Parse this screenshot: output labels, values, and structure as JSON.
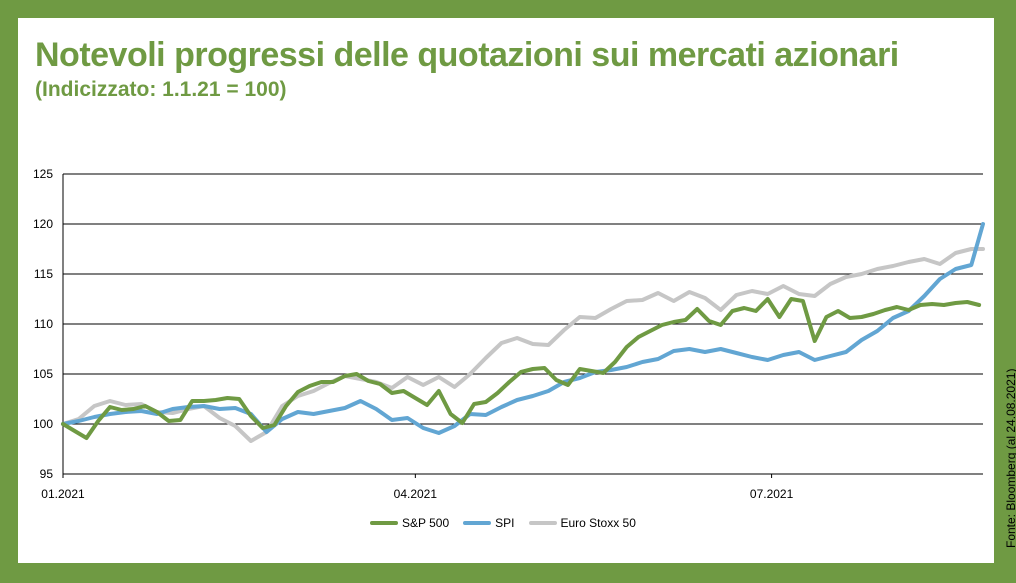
{
  "title": "Notevoli progressi delle quotazioni sui mercati azionari",
  "subtitle": "(Indicizzato: 1.1.21 = 100)",
  "source": "Fonte: Bloomberg (al 24.08.2021)",
  "colors": {
    "frame": "#6f9a43",
    "title": "#6f9a43",
    "sp500": "#6f9a43",
    "spi": "#62a6d3",
    "eurostoxx": "#c6c6c6"
  },
  "chart_data": {
    "type": "line",
    "title": "Notevoli progressi delle quotazioni sui mercati azionari",
    "subtitle": "(Indicizzato: 1.1.21 = 100)",
    "xlabel": "",
    "ylabel": "",
    "ylim": [
      95,
      125
    ],
    "yticks": [
      "95",
      "100",
      "105",
      "110",
      "115",
      "120",
      "125"
    ],
    "xticks": [
      {
        "label": "01.2021",
        "date": "2021-01-01"
      },
      {
        "label": "04.2021",
        "date": "2021-04-01"
      },
      {
        "label": "07.2021",
        "date": "2021-07-01"
      }
    ],
    "xlim": [
      "2021-01-01",
      "2021-08-24"
    ],
    "grid": "horizontal",
    "legend": "bottom",
    "series": [
      {
        "name": "S&P 500",
        "color": "#6f9a43",
        "points": [
          [
            "2021-01-01",
            100
          ],
          [
            "2021-01-04",
            99.3
          ],
          [
            "2021-01-07",
            98.6
          ],
          [
            "2021-01-10",
            100.3
          ],
          [
            "2021-01-13",
            101.7
          ],
          [
            "2021-01-16",
            101.4
          ],
          [
            "2021-01-19",
            101.5
          ],
          [
            "2021-01-22",
            101.8
          ],
          [
            "2021-01-25",
            101.2
          ],
          [
            "2021-01-28",
            100.3
          ],
          [
            "2021-01-31",
            100.4
          ],
          [
            "2021-02-03",
            102.3
          ],
          [
            "2021-02-06",
            102.3
          ],
          [
            "2021-02-09",
            102.4
          ],
          [
            "2021-02-12",
            102.6
          ],
          [
            "2021-02-15",
            102.5
          ],
          [
            "2021-02-18",
            100.8
          ],
          [
            "2021-02-21",
            99.6
          ],
          [
            "2021-02-24",
            99.9
          ],
          [
            "2021-02-27",
            101.8
          ],
          [
            "2021-03-02",
            103.2
          ],
          [
            "2021-03-05",
            103.8
          ],
          [
            "2021-03-08",
            104.2
          ],
          [
            "2021-03-11",
            104.2
          ],
          [
            "2021-03-14",
            104.8
          ],
          [
            "2021-03-17",
            105.0
          ],
          [
            "2021-03-20",
            104.3
          ],
          [
            "2021-03-23",
            104.0
          ],
          [
            "2021-03-26",
            103.1
          ],
          [
            "2021-03-29",
            103.3
          ],
          [
            "2021-04-01",
            102.6
          ],
          [
            "2021-04-04",
            101.9
          ],
          [
            "2021-04-07",
            103.3
          ],
          [
            "2021-04-10",
            101.0
          ],
          [
            "2021-04-13",
            100.1
          ],
          [
            "2021-04-16",
            102.0
          ],
          [
            "2021-04-19",
            102.2
          ],
          [
            "2021-04-22",
            103.1
          ],
          [
            "2021-04-25",
            104.2
          ],
          [
            "2021-04-28",
            105.2
          ],
          [
            "2021-05-01",
            105.5
          ],
          [
            "2021-05-04",
            105.6
          ],
          [
            "2021-05-07",
            104.4
          ],
          [
            "2021-05-10",
            103.9
          ],
          [
            "2021-05-13",
            105.5
          ],
          [
            "2021-05-16",
            105.3
          ],
          [
            "2021-05-19",
            105.1
          ],
          [
            "2021-05-22",
            106.2
          ],
          [
            "2021-05-25",
            107.7
          ],
          [
            "2021-05-28",
            108.7
          ],
          [
            "2021-05-31",
            109.3
          ],
          [
            "2021-06-03",
            109.9
          ],
          [
            "2021-06-06",
            110.2
          ],
          [
            "2021-06-09",
            110.4
          ],
          [
            "2021-06-12",
            111.5
          ],
          [
            "2021-06-15",
            110.3
          ],
          [
            "2021-06-18",
            109.9
          ],
          [
            "2021-06-21",
            111.3
          ],
          [
            "2021-06-24",
            111.6
          ],
          [
            "2021-06-27",
            111.3
          ],
          [
            "2021-06-30",
            112.5
          ],
          [
            "2021-07-03",
            110.7
          ],
          [
            "2021-07-06",
            112.5
          ],
          [
            "2021-07-09",
            112.3
          ],
          [
            "2021-07-12",
            108.3
          ],
          [
            "2021-07-15",
            110.7
          ],
          [
            "2021-07-18",
            111.3
          ],
          [
            "2021-07-21",
            110.6
          ],
          [
            "2021-07-24",
            110.7
          ],
          [
            "2021-07-27",
            111.0
          ],
          [
            "2021-07-30",
            111.4
          ],
          [
            "2021-08-02",
            111.7
          ],
          [
            "2021-08-05",
            111.4
          ],
          [
            "2021-08-08",
            111.9
          ],
          [
            "2021-08-11",
            112.0
          ],
          [
            "2021-08-14",
            111.9
          ],
          [
            "2021-08-17",
            112.1
          ],
          [
            "2021-08-20",
            112.2
          ],
          [
            "2021-08-23",
            111.9
          ]
        ]
      },
      {
        "name": "SPI",
        "color": "#62a6d3",
        "points": [
          [
            "2021-01-01",
            100
          ],
          [
            "2021-01-05",
            100.3
          ],
          [
            "2021-01-09",
            100.7
          ],
          [
            "2021-01-13",
            101.0
          ],
          [
            "2021-01-17",
            101.2
          ],
          [
            "2021-01-21",
            101.3
          ],
          [
            "2021-01-25",
            101.0
          ],
          [
            "2021-01-29",
            101.5
          ],
          [
            "2021-02-02",
            101.7
          ],
          [
            "2021-02-06",
            101.8
          ],
          [
            "2021-02-10",
            101.5
          ],
          [
            "2021-02-14",
            101.6
          ],
          [
            "2021-02-18",
            101.0
          ],
          [
            "2021-02-22",
            99.2
          ],
          [
            "2021-02-26",
            100.5
          ],
          [
            "2021-03-02",
            101.2
          ],
          [
            "2021-03-06",
            101.0
          ],
          [
            "2021-03-10",
            101.3
          ],
          [
            "2021-03-14",
            101.6
          ],
          [
            "2021-03-18",
            102.3
          ],
          [
            "2021-03-22",
            101.5
          ],
          [
            "2021-03-26",
            100.4
          ],
          [
            "2021-03-30",
            100.6
          ],
          [
            "2021-04-03",
            99.6
          ],
          [
            "2021-04-07",
            99.1
          ],
          [
            "2021-04-11",
            99.8
          ],
          [
            "2021-04-15",
            101.0
          ],
          [
            "2021-04-19",
            100.9
          ],
          [
            "2021-04-23",
            101.7
          ],
          [
            "2021-04-27",
            102.4
          ],
          [
            "2021-05-01",
            102.8
          ],
          [
            "2021-05-05",
            103.3
          ],
          [
            "2021-05-09",
            104.2
          ],
          [
            "2021-05-13",
            104.6
          ],
          [
            "2021-05-17",
            105.2
          ],
          [
            "2021-05-21",
            105.4
          ],
          [
            "2021-05-25",
            105.7
          ],
          [
            "2021-05-29",
            106.2
          ],
          [
            "2021-06-02",
            106.5
          ],
          [
            "2021-06-06",
            107.3
          ],
          [
            "2021-06-10",
            107.5
          ],
          [
            "2021-06-14",
            107.2
          ],
          [
            "2021-06-18",
            107.5
          ],
          [
            "2021-06-22",
            107.1
          ],
          [
            "2021-06-26",
            106.7
          ],
          [
            "2021-06-30",
            106.4
          ],
          [
            "2021-07-04",
            106.9
          ],
          [
            "2021-07-08",
            107.2
          ],
          [
            "2021-07-12",
            106.4
          ],
          [
            "2021-07-16",
            106.8
          ],
          [
            "2021-07-20",
            107.2
          ],
          [
            "2021-07-24",
            108.4
          ],
          [
            "2021-07-28",
            109.3
          ],
          [
            "2021-08-01",
            110.6
          ],
          [
            "2021-08-05",
            111.3
          ],
          [
            "2021-08-09",
            112.8
          ],
          [
            "2021-08-13",
            114.5
          ],
          [
            "2021-08-17",
            115.5
          ],
          [
            "2021-08-21",
            115.9
          ],
          [
            "2021-08-24",
            120.0
          ]
        ]
      },
      {
        "name": "Euro Stoxx 50",
        "color": "#c6c6c6",
        "points": [
          [
            "2021-01-01",
            100
          ],
          [
            "2021-01-05",
            100.5
          ],
          [
            "2021-01-09",
            101.8
          ],
          [
            "2021-01-13",
            102.3
          ],
          [
            "2021-01-17",
            101.9
          ],
          [
            "2021-01-21",
            102.0
          ],
          [
            "2021-01-25",
            101.2
          ],
          [
            "2021-01-29",
            101.1
          ],
          [
            "2021-02-02",
            101.5
          ],
          [
            "2021-02-06",
            101.8
          ],
          [
            "2021-02-10",
            100.6
          ],
          [
            "2021-02-14",
            99.8
          ],
          [
            "2021-02-18",
            98.3
          ],
          [
            "2021-02-22",
            99.2
          ],
          [
            "2021-02-26",
            101.8
          ],
          [
            "2021-03-02",
            102.8
          ],
          [
            "2021-03-06",
            103.3
          ],
          [
            "2021-03-10",
            104.1
          ],
          [
            "2021-03-14",
            104.8
          ],
          [
            "2021-03-18",
            104.5
          ],
          [
            "2021-03-22",
            104.2
          ],
          [
            "2021-03-26",
            103.6
          ],
          [
            "2021-03-30",
            104.7
          ],
          [
            "2021-04-03",
            103.9
          ],
          [
            "2021-04-07",
            104.7
          ],
          [
            "2021-04-11",
            103.7
          ],
          [
            "2021-04-15",
            105.0
          ],
          [
            "2021-04-19",
            106.6
          ],
          [
            "2021-04-23",
            108.1
          ],
          [
            "2021-04-27",
            108.6
          ],
          [
            "2021-05-01",
            108.0
          ],
          [
            "2021-05-05",
            107.9
          ],
          [
            "2021-05-09",
            109.4
          ],
          [
            "2021-05-13",
            110.7
          ],
          [
            "2021-05-17",
            110.6
          ],
          [
            "2021-05-21",
            111.5
          ],
          [
            "2021-05-25",
            112.3
          ],
          [
            "2021-05-29",
            112.4
          ],
          [
            "2021-06-02",
            113.1
          ],
          [
            "2021-06-06",
            112.3
          ],
          [
            "2021-06-10",
            113.2
          ],
          [
            "2021-06-14",
            112.6
          ],
          [
            "2021-06-18",
            111.4
          ],
          [
            "2021-06-22",
            112.9
          ],
          [
            "2021-06-26",
            113.3
          ],
          [
            "2021-06-30",
            113.0
          ],
          [
            "2021-07-04",
            113.8
          ],
          [
            "2021-07-08",
            113.0
          ],
          [
            "2021-07-12",
            112.8
          ],
          [
            "2021-07-16",
            114.0
          ],
          [
            "2021-07-20",
            114.7
          ],
          [
            "2021-07-24",
            115.0
          ],
          [
            "2021-07-28",
            115.5
          ],
          [
            "2021-08-01",
            115.8
          ],
          [
            "2021-08-05",
            116.2
          ],
          [
            "2021-08-09",
            116.5
          ],
          [
            "2021-08-13",
            116.0
          ],
          [
            "2021-08-17",
            117.1
          ],
          [
            "2021-08-21",
            117.5
          ],
          [
            "2021-08-24",
            117.5
          ]
        ]
      }
    ]
  }
}
